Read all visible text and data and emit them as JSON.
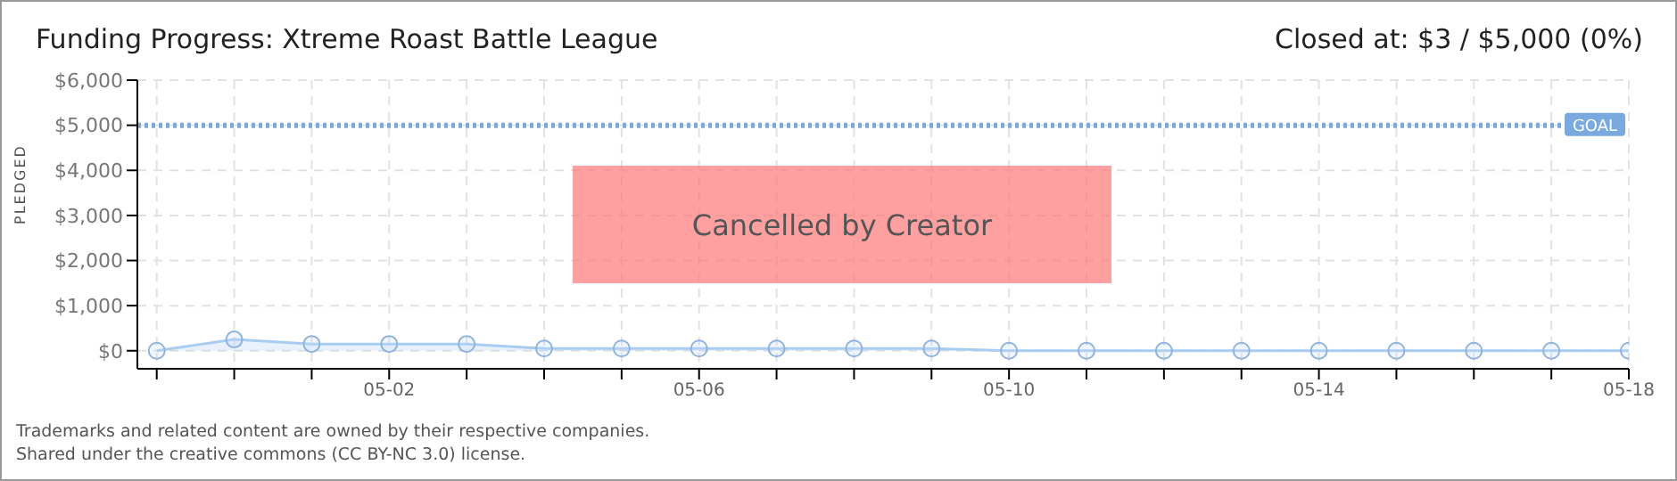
{
  "chart_data": {
    "type": "area",
    "title": "Funding Progress: Xtreme Roast Battle League",
    "subtitle": "Closed at:  $3 /  $5,000 (0%)",
    "ylabel": "PLEDGED",
    "x": [
      "--04-29",
      "--04-30",
      "--05-01",
      "--05-02",
      "--05-03",
      "--05-04",
      "--05-05",
      "--05-06",
      "--05-07",
      "--05-08",
      "--05-09",
      "--05-10",
      "--05-11",
      "--05-12",
      "--05-13",
      "--05-14",
      "--05-15",
      "--05-16",
      "--05-17",
      "--05-18"
    ],
    "series": [
      {
        "color": "#a9cdf2",
        "values": [
          0,
          250,
          150,
          150,
          150,
          50,
          50,
          50,
          50,
          50,
          50,
          0,
          0,
          0,
          0,
          0,
          0,
          0,
          0,
          0
        ]
      }
    ],
    "marker": "circle",
    "grid": true,
    "legend": false,
    "xlim": [
      "--04-28T18:00",
      "--05-18"
    ],
    "xticks": [
      {
        "value": "--04-29",
        "label": null
      },
      {
        "value": "--04-30",
        "label": null
      },
      {
        "value": "--05-01",
        "label": null
      },
      {
        "value": "--05-02",
        "label": "05-02"
      },
      {
        "value": "--05-03",
        "label": null
      },
      {
        "value": "--05-04",
        "label": null
      },
      {
        "value": "--05-05",
        "label": null
      },
      {
        "value": "--05-06",
        "label": "05-06"
      },
      {
        "value": "--05-07",
        "label": null
      },
      {
        "value": "--05-08",
        "label": null
      },
      {
        "value": "--05-09",
        "label": null
      },
      {
        "value": "--05-10",
        "label": "05-10"
      },
      {
        "value": "--05-11",
        "label": null
      },
      {
        "value": "--05-12",
        "label": null
      },
      {
        "value": "--05-13",
        "label": null
      },
      {
        "value": "--05-14",
        "label": "05-14"
      },
      {
        "value": "--05-15",
        "label": null
      },
      {
        "value": "--05-16",
        "label": null
      },
      {
        "value": "--05-17",
        "label": null
      },
      {
        "value": "--05-18",
        "label": "05-18"
      }
    ],
    "ylim": [
      -400,
      6000
    ],
    "yticks": [
      {
        "value": 0,
        "label": "$0"
      },
      {
        "value": 1000,
        "label": "$1,000"
      },
      {
        "value": 2000,
        "label": "$2,000"
      },
      {
        "value": 3000,
        "label": "$3,000"
      },
      {
        "value": 4000,
        "label": "$4,000"
      },
      {
        "value": 5000,
        "label": "$5,000"
      },
      {
        "value": 6000,
        "label": "$6,000"
      }
    ],
    "ref_lines": [
      {
        "axis": "y",
        "value": 5000,
        "label": "GOAL",
        "color": "#7aa9e0",
        "line_style": "dotted"
      }
    ],
    "annotations": [
      "Cancelled by Creator",
      "Trademarks and related content are owned by their respective companies.",
      "Shared under the creative commons (CC BY-NC 3.0) license."
    ]
  }
}
